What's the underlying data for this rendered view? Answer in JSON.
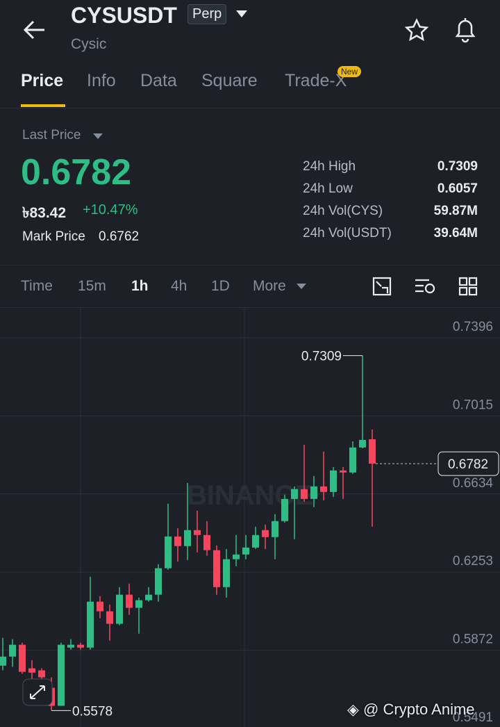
{
  "header": {
    "symbol": "CYSUSDT",
    "badge": "Perp",
    "name": "Cysic"
  },
  "tabs": [
    "Price",
    "Info",
    "Data",
    "Square",
    "Trade-X"
  ],
  "new_badge": "New",
  "price": {
    "label": "Last Price",
    "value": "0.6782",
    "fiat": "৳83.42",
    "change": "+10.47%",
    "mark_label": "Mark Price",
    "mark_value": "0.6762"
  },
  "stats": [
    [
      "24h High",
      "0.7309"
    ],
    [
      "24h Low",
      "0.6057"
    ],
    [
      "24h Vol(CYS)",
      "59.87M"
    ],
    [
      "24h Vol(USDT)",
      "39.64M"
    ]
  ],
  "intervals": [
    "Time",
    "15m",
    "1h",
    "4h",
    "1D",
    "More"
  ],
  "chart_data": {
    "type": "candlestick",
    "ylim": [
      0.5491,
      0.7396
    ],
    "yticks": [
      0.7396,
      0.7015,
      0.6634,
      0.6253,
      0.5872,
      0.5491
    ],
    "up_color": "#2ebd85",
    "down_color": "#f6465d",
    "watermark": "BINANCE",
    "high_marker": 0.7309,
    "low_marker": 0.5578,
    "last_price": 0.6782,
    "candles": [
      {
        "open": 0.5797,
        "high": 0.5933,
        "low": 0.5774,
        "close": 0.5841
      },
      {
        "open": 0.5841,
        "high": 0.5926,
        "low": 0.5791,
        "close": 0.5899
      },
      {
        "open": 0.5899,
        "high": 0.5909,
        "low": 0.5757,
        "close": 0.5767
      },
      {
        "open": 0.5784,
        "high": 0.5824,
        "low": 0.5689,
        "close": 0.5763
      },
      {
        "open": 0.5774,
        "high": 0.5784,
        "low": 0.5655,
        "close": 0.574
      },
      {
        "open": 0.5689,
        "high": 0.574,
        "low": 0.5578,
        "close": 0.5601
      },
      {
        "open": 0.5601,
        "high": 0.5909,
        "low": 0.5601,
        "close": 0.5899
      },
      {
        "open": 0.5885,
        "high": 0.5926,
        "low": 0.5875,
        "close": 0.5899
      },
      {
        "open": 0.5899,
        "high": 0.5909,
        "low": 0.5875,
        "close": 0.5885
      },
      {
        "open": 0.5885,
        "high": 0.6231,
        "low": 0.5875,
        "close": 0.6109
      },
      {
        "open": 0.6109,
        "high": 0.6136,
        "low": 0.6028,
        "close": 0.6062
      },
      {
        "open": 0.6062,
        "high": 0.6095,
        "low": 0.5919,
        "close": 0.6001
      },
      {
        "open": 0.6001,
        "high": 0.618,
        "low": 0.5994,
        "close": 0.6143
      },
      {
        "open": 0.6143,
        "high": 0.6197,
        "low": 0.6045,
        "close": 0.6079
      },
      {
        "open": 0.6079,
        "high": 0.6129,
        "low": 0.5953,
        "close": 0.6116
      },
      {
        "open": 0.6116,
        "high": 0.618,
        "low": 0.6109,
        "close": 0.6143
      },
      {
        "open": 0.6143,
        "high": 0.6292,
        "low": 0.6109,
        "close": 0.6272
      },
      {
        "open": 0.6272,
        "high": 0.6587,
        "low": 0.6265,
        "close": 0.6427
      },
      {
        "open": 0.6427,
        "high": 0.6468,
        "low": 0.6305,
        "close": 0.638
      },
      {
        "open": 0.638,
        "high": 0.6688,
        "low": 0.6312,
        "close": 0.6458
      },
      {
        "open": 0.6458,
        "high": 0.6553,
        "low": 0.6349,
        "close": 0.6434
      },
      {
        "open": 0.6434,
        "high": 0.6502,
        "low": 0.6333,
        "close": 0.636
      },
      {
        "open": 0.636,
        "high": 0.6383,
        "low": 0.6143,
        "close": 0.618
      },
      {
        "open": 0.618,
        "high": 0.6366,
        "low": 0.6129,
        "close": 0.6316
      },
      {
        "open": 0.6316,
        "high": 0.6434,
        "low": 0.6282,
        "close": 0.6339
      },
      {
        "open": 0.6339,
        "high": 0.6434,
        "low": 0.6316,
        "close": 0.6373
      },
      {
        "open": 0.6373,
        "high": 0.6475,
        "low": 0.6366,
        "close": 0.6434
      },
      {
        "open": 0.6458,
        "high": 0.6485,
        "low": 0.6366,
        "close": 0.6424
      },
      {
        "open": 0.6424,
        "high": 0.6536,
        "low": 0.6316,
        "close": 0.6502
      },
      {
        "open": 0.6502,
        "high": 0.6631,
        "low": 0.6495,
        "close": 0.661
      },
      {
        "open": 0.661,
        "high": 0.6671,
        "low": 0.6414,
        "close": 0.6658
      },
      {
        "open": 0.6658,
        "high": 0.6874,
        "low": 0.6597,
        "close": 0.661
      },
      {
        "open": 0.661,
        "high": 0.6722,
        "low": 0.657,
        "close": 0.6671
      },
      {
        "open": 0.6671,
        "high": 0.6841,
        "low": 0.6603,
        "close": 0.6644
      },
      {
        "open": 0.6644,
        "high": 0.6766,
        "low": 0.662,
        "close": 0.6749
      },
      {
        "open": 0.6749,
        "high": 0.6766,
        "low": 0.661,
        "close": 0.6739
      },
      {
        "open": 0.6739,
        "high": 0.6891,
        "low": 0.6732,
        "close": 0.6861
      },
      {
        "open": 0.6861,
        "high": 0.7309,
        "low": 0.6857,
        "close": 0.6898
      },
      {
        "open": 0.6901,
        "high": 0.6949,
        "low": 0.6475,
        "close": 0.6782
      }
    ]
  },
  "credit": "@ Crypto Anime"
}
